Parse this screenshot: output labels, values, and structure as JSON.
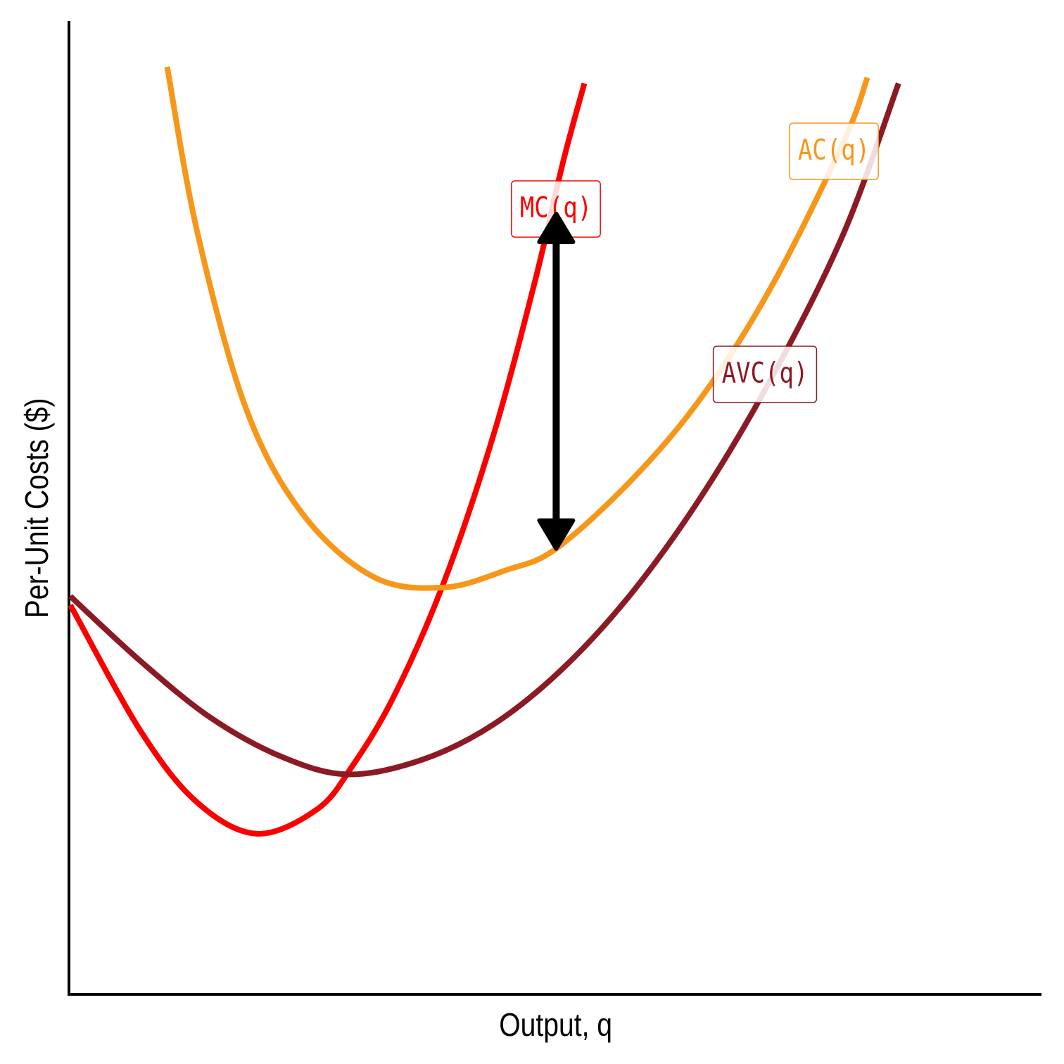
{
  "chart_data": {
    "type": "line",
    "x_label": "Output, q",
    "y_label": "Per-Unit Costs ($)",
    "xlim": [
      0,
      100
    ],
    "ylim": [
      0,
      100
    ],
    "series": [
      {
        "name": "MC(q)",
        "color": "#fc0000",
        "x": [
          0.14,
          7.4,
          13.2,
          19.3,
          25.5,
          29.1,
          33.4,
          38.5,
          43.6,
          47.9,
          50.8,
          53.0
        ],
        "values": [
          40.0,
          27.0,
          19.7,
          16.5,
          19.0,
          23.4,
          30.6,
          42.2,
          57.3,
          73.2,
          85.5,
          93.6
        ]
      },
      {
        "name": "AVC(q)",
        "color": "#8b1a24",
        "x": [
          0.14,
          7.4,
          14.6,
          21.9,
          28.7,
          36.3,
          43.6,
          50.8,
          58.0,
          65.3,
          72.5,
          79.7,
          85.3
        ],
        "values": [
          40.9,
          34.2,
          28.4,
          24.4,
          22.6,
          24.1,
          27.7,
          33.5,
          41.4,
          51.6,
          63.8,
          78.3,
          93.6
        ]
      },
      {
        "name": "AC(q)",
        "color": "#f7971a",
        "x": [
          10.1,
          13.2,
          18.2,
          24.0,
          31.3,
          38.5,
          45.0,
          50.1,
          58.0,
          65.3,
          72.5,
          79.7,
          82.1
        ],
        "values": [
          95.3,
          78.3,
          60.2,
          49.4,
          42.9,
          41.8,
          43.6,
          45.8,
          53.0,
          61.7,
          73.2,
          87.7,
          94.2
        ]
      }
    ],
    "arrow": {
      "x": 50.1,
      "y_from": 80.2,
      "y_to": 45.8
    }
  }
}
